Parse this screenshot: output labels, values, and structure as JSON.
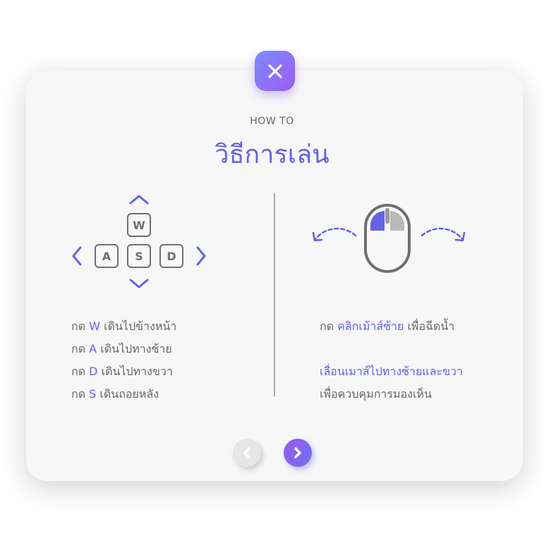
{
  "colors": {
    "accent": "#6462e6",
    "accent_gradient_start": "#7d8bff",
    "accent_gradient_end": "#9b5cf0",
    "text_gray": "#666666",
    "key_gray": "#6f6f6f",
    "card_bg": "#f7f7f8"
  },
  "header": {
    "subtitle": "HOW TO",
    "title": "วิธีการเล่น"
  },
  "close_button": {
    "icon": "close-icon"
  },
  "keyboard": {
    "keys": [
      "W",
      "A",
      "S",
      "D"
    ],
    "instructions": [
      {
        "prefix": "กด",
        "key": "W",
        "text": "เดินไปข้างหน้า"
      },
      {
        "prefix": "กด",
        "key": "A",
        "text": "เดินไปทางซ้าย"
      },
      {
        "prefix": "กด",
        "key": "D",
        "text": "เดินไปทางขวา"
      },
      {
        "prefix": "กด",
        "key": "S",
        "text": "เดินถอยหลัง"
      }
    ]
  },
  "mouse": {
    "click": {
      "prefix": "กด",
      "action": "คลิกเม้าส์ซ้าย",
      "text": "เพื่อฉีดน้ำ"
    },
    "move": {
      "action": "เลื่อนเมาส์ไปทางซ้ายและขวา",
      "text": "เพื่อควบคุมการมองเห็น"
    }
  },
  "pagination": {
    "prev_icon": "chevron-left-icon",
    "next_icon": "chevron-right-icon",
    "prev_enabled": false,
    "next_enabled": true
  }
}
